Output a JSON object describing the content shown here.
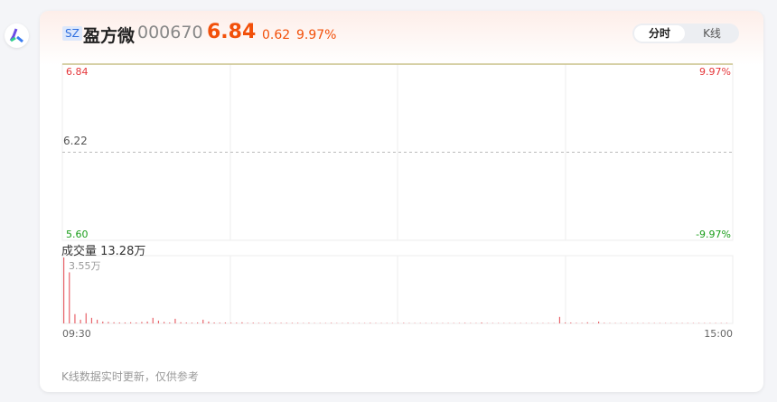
{
  "stock": {
    "market": "SZ",
    "name": "盈方微",
    "code": "000670",
    "price": "6.84",
    "change": "0.62",
    "change_pct": "9.97%"
  },
  "toggle": {
    "intraday": "分时",
    "kline": "K线"
  },
  "footer": "K线数据实时更新，仅供参考",
  "colors": {
    "up": "#f2500a",
    "red": "#e5363a",
    "green": "#1a9e1a",
    "price_line": "#c8c089"
  },
  "chart_data": [
    {
      "type": "line",
      "ylim": [
        5.6,
        6.84
      ],
      "y_ticks": [
        "6.84",
        "6.22",
        "5.60"
      ],
      "pct_ticks": [
        "9.97%",
        "-9.97%"
      ],
      "x_ticks": [
        "09:30",
        "15:00"
      ],
      "series": [
        {
          "values": [
            6.84,
            6.84
          ]
        }
      ]
    },
    {
      "type": "bar",
      "title": "成交量 13.28万",
      "max_label": "3.55万",
      "ylim": [
        0,
        3.55
      ],
      "unit": "万",
      "values": [
        3.55,
        2.75,
        0.5,
        0.2,
        0.55,
        0.3,
        0.2,
        0.1,
        0.08,
        0.06,
        0.05,
        0.05,
        0.06,
        0.05,
        0.08,
        0.1,
        0.3,
        0.15,
        0.08,
        0.05,
        0.25,
        0.06,
        0.05,
        0.04,
        0.05,
        0.2,
        0.1,
        0.05,
        0.04,
        0.05,
        0.04,
        0.04,
        0.06,
        0.03,
        0.04,
        0.03,
        0.03,
        0.04,
        0.03,
        0.03,
        0.03,
        0.03,
        0.03,
        0.02,
        0.03,
        0.02,
        0.02,
        0.02,
        0.03,
        0.02,
        0.02,
        0.03,
        0.02,
        0.02,
        0.02,
        0.03,
        0.02,
        0.02,
        0.02,
        0.02,
        0.02,
        0.03,
        0.02,
        0.02,
        0.02,
        0.02,
        0.02,
        0.02,
        0.02,
        0.02,
        0.02,
        0.02,
        0.03,
        0.02,
        0.02,
        0.05,
        0.02,
        0.02,
        0.02,
        0.02,
        0.02,
        0.02,
        0.02,
        0.02,
        0.02,
        0.02,
        0.02,
        0.02,
        0.02,
        0.35,
        0.05,
        0.05,
        0.03,
        0.03,
        0.06,
        0.02,
        0.1,
        0.03,
        0.02,
        0.02,
        0.02,
        0.02,
        0.02,
        0.02,
        0.02,
        0.02,
        0.02,
        0.02,
        0.02,
        0.02,
        0.02,
        0.02,
        0.02,
        0.02,
        0.02,
        0.02,
        0.02,
        0.02,
        0.02,
        0.02
      ]
    }
  ]
}
